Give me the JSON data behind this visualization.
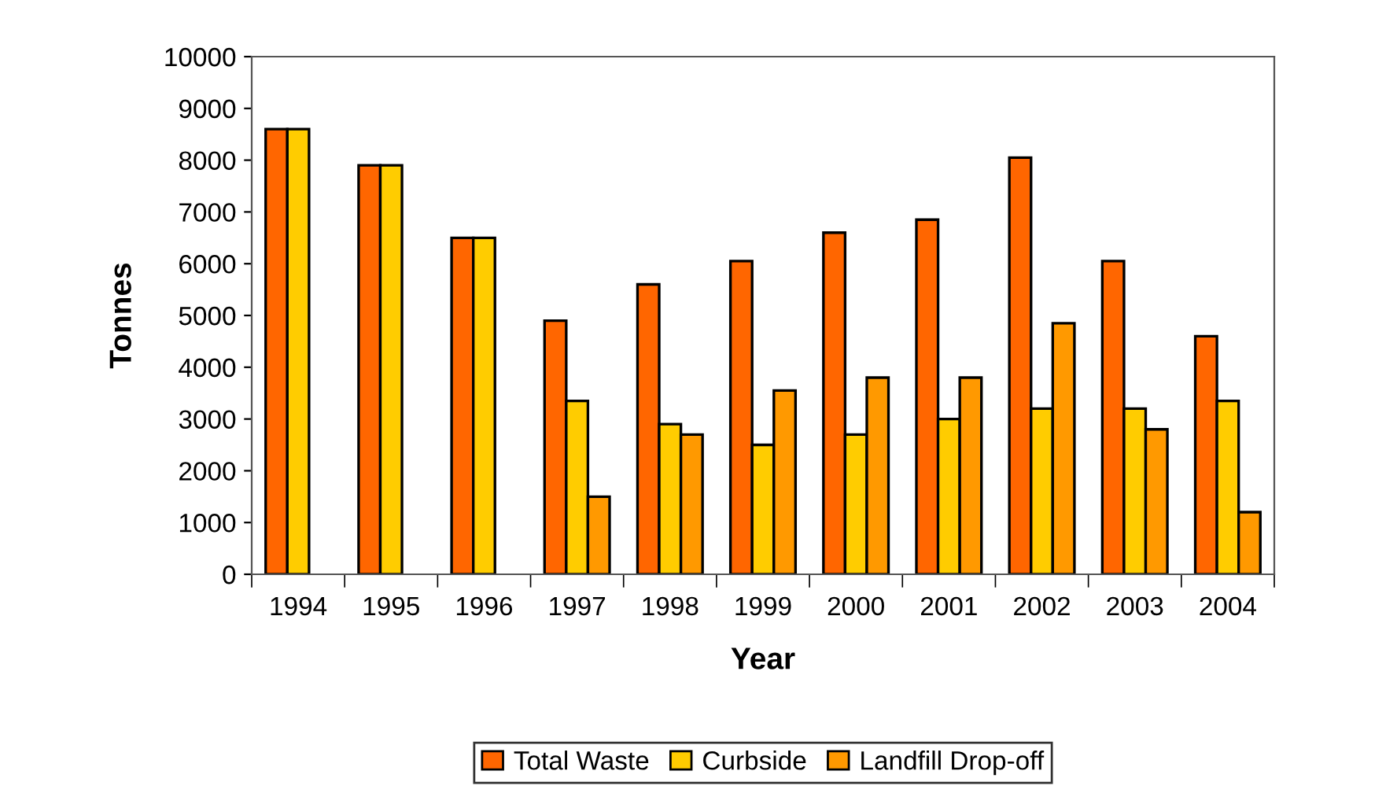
{
  "chart_data": {
    "type": "bar",
    "xlabel": "Year",
    "ylabel": "Tonnes",
    "categories": [
      "1994",
      "1995",
      "1996",
      "1997",
      "1998",
      "1999",
      "2000",
      "2001",
      "2002",
      "2003",
      "2004"
    ],
    "series": [
      {
        "name": "Total Waste",
        "color": "#ff6600",
        "values": [
          8600,
          7900,
          6500,
          4900,
          5600,
          6050,
          6600,
          6850,
          8050,
          6050,
          4600
        ]
      },
      {
        "name": "Curbside",
        "color": "#ffcc00",
        "values": [
          8600,
          7900,
          6500,
          3350,
          2900,
          2500,
          2700,
          3000,
          3200,
          3200,
          3350
        ]
      },
      {
        "name": "Landfill Drop-off",
        "color": "#ff9900",
        "values": [
          null,
          null,
          null,
          1500,
          2700,
          3550,
          3800,
          3800,
          4850,
          2800,
          1200
        ]
      }
    ],
    "ylim": [
      0,
      10000
    ],
    "yticks": [
      0,
      1000,
      2000,
      3000,
      4000,
      5000,
      6000,
      7000,
      8000,
      9000,
      10000
    ],
    "grid": false,
    "legend": "bottom"
  }
}
